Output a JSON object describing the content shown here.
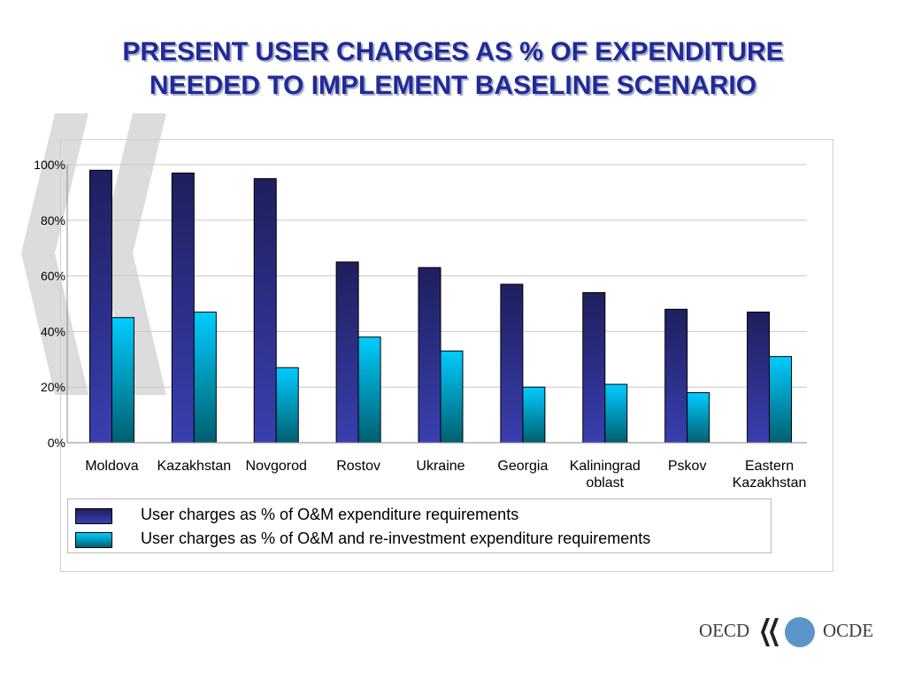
{
  "title_line1": "PRESENT USER CHARGES AS % OF EXPENDITURE",
  "title_line2": "NEEDED TO IMPLEMENT BASELINE SCENARIO",
  "chart_data": {
    "type": "bar",
    "title": "PRESENT USER CHARGES AS % OF EXPENDITURE NEEDED TO IMPLEMENT BASELINE SCENARIO",
    "categories": [
      "Moldova",
      "Kazakhstan",
      "Novgorod",
      "Rostov",
      "Ukraine",
      "Georgia",
      "Kaliningrad oblast",
      "Pskov",
      "Eastern Kazakhstan"
    ],
    "category_label_lines": [
      [
        "Moldova"
      ],
      [
        "Kazakhstan"
      ],
      [
        "Novgorod"
      ],
      [
        "Rostov"
      ],
      [
        "Ukraine"
      ],
      [
        "Georgia"
      ],
      [
        "Kaliningrad",
        "oblast"
      ],
      [
        "Pskov"
      ],
      [
        "Eastern",
        "Kazakhstan"
      ]
    ],
    "series": [
      {
        "name": "User charges as % of O&M expenditure requirements",
        "values": [
          98,
          97,
          95,
          65,
          63,
          57,
          54,
          48,
          47
        ],
        "color_top": "#1e1f5e",
        "color_bottom": "#3a3fb0"
      },
      {
        "name": "User charges as % of O&M and re-investment expenditure requirements",
        "values": [
          45,
          47,
          27,
          38,
          33,
          20,
          21,
          18,
          31
        ],
        "color_top": "#00ccff",
        "color_bottom": "#005f70"
      }
    ],
    "ylim": [
      0,
      100
    ],
    "yticks": [
      "0%",
      "20%",
      "40%",
      "60%",
      "80%",
      "100%"
    ],
    "ytick_values": [
      0,
      20,
      40,
      60,
      80,
      100
    ],
    "xlabel": "",
    "ylabel": "",
    "grid": true,
    "legend_position": "bottom"
  },
  "logo": {
    "left_text": "OECD",
    "right_text": "OCDE",
    "circle_color": "#5b95c9"
  },
  "colors": {
    "title": "#1f2a9a",
    "grid": "#c8c8c8"
  }
}
